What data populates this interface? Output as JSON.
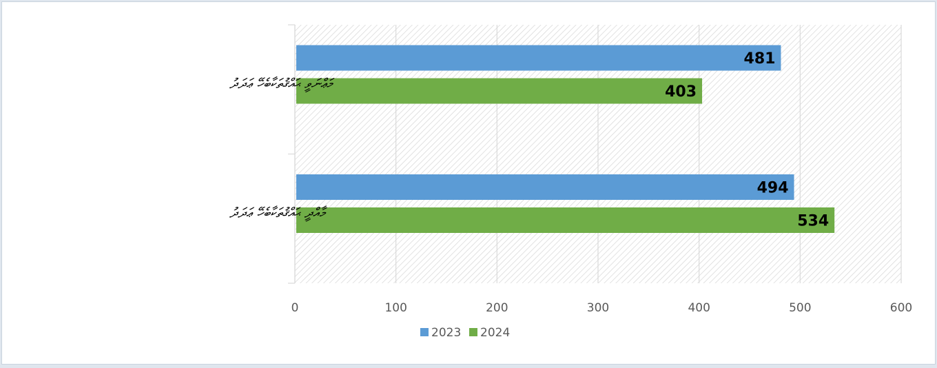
{
  "chart_data": {
    "type": "bar",
    "orientation": "horizontal",
    "title": "",
    "xlabel": "",
    "ylabel": "",
    "xlim": [
      0,
      600
    ],
    "x_ticks": [
      "0",
      "100",
      "200",
      "300",
      "400",
      "500",
      "600"
    ],
    "grid": true,
    "categories": [
      "މަޢްނަވީ ޙައްޤުތަކާބެހޭ ޢަދަދު",
      "މާއްދީ ޙައްޤުތަކާބެހޭ ޢަދަދު"
    ],
    "series": [
      {
        "name": "2023",
        "color": "#5b9bd5",
        "values": [
          481,
          494
        ]
      },
      {
        "name": "2024",
        "color": "#70ad47",
        "values": [
          403,
          534
        ]
      }
    ],
    "data_labels": true,
    "legend_position": "bottom"
  }
}
